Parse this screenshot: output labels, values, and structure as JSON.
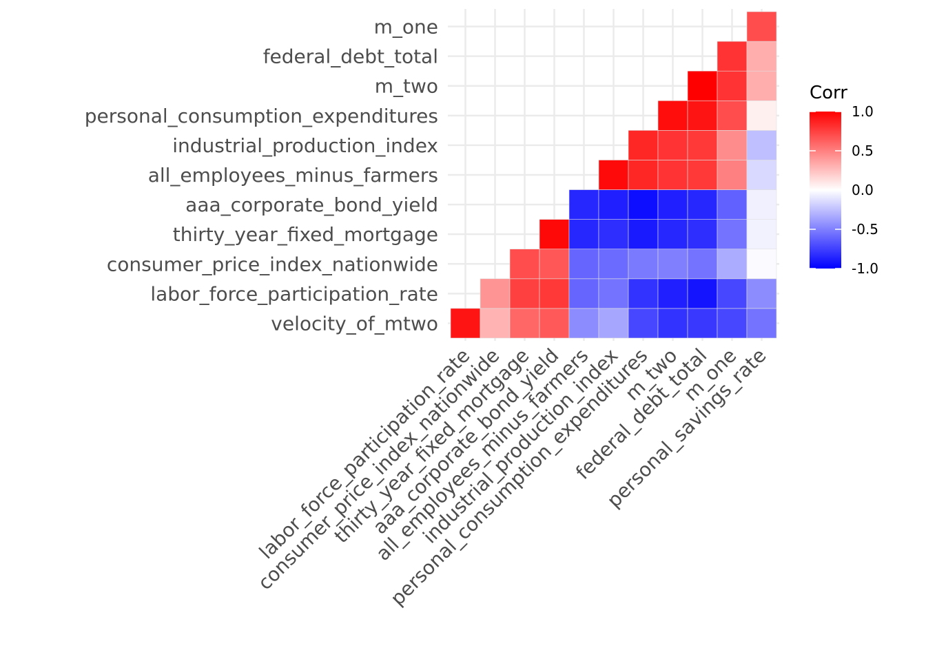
{
  "chart_data": {
    "type": "heatmap",
    "subtype": "correlation-lower-triangle",
    "x_labels": [
      "labor_force_participation_rate",
      "consumer_price_index_nationwide",
      "thirty_year_fixed_mortgage",
      "aaa_corporate_bond_yield",
      "all_employees_minus_farmers",
      "industrial_production_index",
      "personal_consumption_expenditures",
      "m_two",
      "federal_debt_total",
      "m_one",
      "personal_savings_rate"
    ],
    "y_labels": [
      "velocity_of_mtwo",
      "labor_force_participation_rate",
      "consumer_price_index_nationwide",
      "thirty_year_fixed_mortgage",
      "aaa_corporate_bond_yield",
      "all_employees_minus_farmers",
      "industrial_production_index",
      "personal_consumption_expenditures",
      "m_two",
      "federal_debt_total",
      "m_one"
    ],
    "values": [
      [
        0.92,
        0.3,
        0.6,
        0.65,
        -0.45,
        -0.35,
        -0.72,
        -0.8,
        -0.78,
        -0.72,
        -0.55
      ],
      [
        null,
        0.42,
        0.75,
        0.78,
        -0.6,
        -0.55,
        -0.8,
        -0.88,
        -0.92,
        -0.72,
        -0.45
      ],
      [
        null,
        null,
        0.7,
        0.66,
        -0.6,
        -0.58,
        -0.52,
        -0.5,
        -0.55,
        -0.33,
        -0.02
      ],
      [
        null,
        null,
        null,
        0.97,
        -0.85,
        -0.82,
        -0.9,
        -0.85,
        -0.82,
        -0.55,
        -0.05
      ],
      [
        null,
        null,
        null,
        null,
        -0.85,
        -0.88,
        -0.95,
        -0.88,
        -0.85,
        -0.62,
        -0.06
      ],
      [
        null,
        null,
        null,
        null,
        null,
        0.96,
        0.85,
        0.8,
        0.78,
        0.5,
        -0.15
      ],
      [
        null,
        null,
        null,
        null,
        null,
        null,
        0.85,
        0.8,
        0.78,
        0.45,
        -0.25
      ],
      [
        null,
        null,
        null,
        null,
        null,
        null,
        null,
        0.95,
        0.92,
        0.7,
        0.06
      ],
      [
        null,
        null,
        null,
        null,
        null,
        null,
        null,
        null,
        1.0,
        0.8,
        0.32
      ],
      [
        null,
        null,
        null,
        null,
        null,
        null,
        null,
        null,
        null,
        0.8,
        0.32
      ],
      [
        null,
        null,
        null,
        null,
        null,
        null,
        null,
        null,
        null,
        null,
        0.7
      ]
    ],
    "legend": {
      "title": "Corr",
      "ticks": [
        "1.0",
        "0.5",
        "0.0",
        "-0.5",
        "-1.0"
      ],
      "tick_values": [
        1.0,
        0.5,
        0.0,
        -0.5,
        -1.0
      ],
      "range": [
        -1,
        1
      ],
      "placement": "right"
    },
    "colors": {
      "high": "#ff0000",
      "mid": "#ffffff",
      "low": "#0000ff",
      "grid": "#ebebeb"
    },
    "grid": true
  }
}
